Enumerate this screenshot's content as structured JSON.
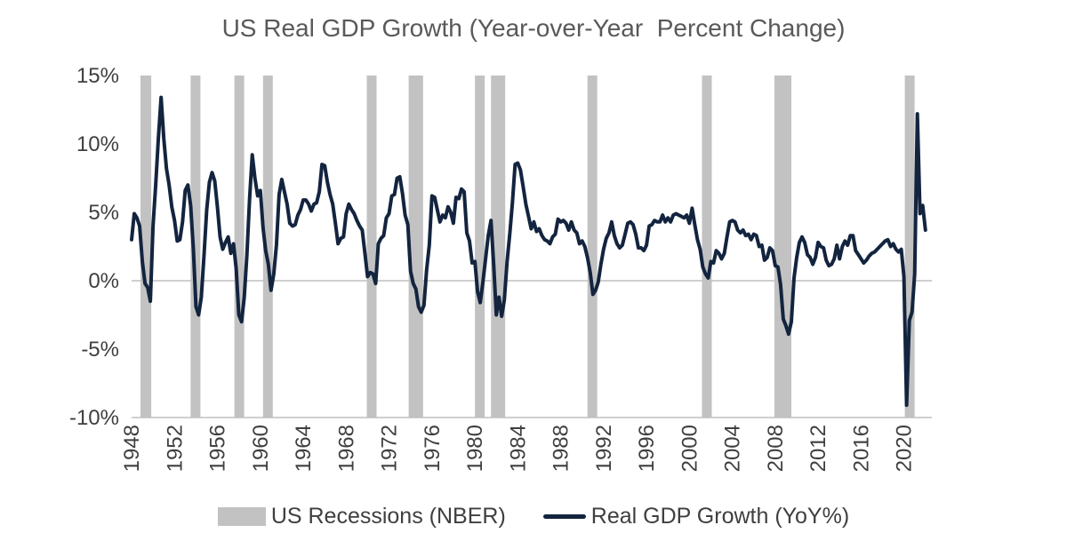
{
  "chart_data": {
    "type": "line",
    "title": "US Real GDP Growth (Year-over-Year  Percent Change)",
    "x_start_year": 1948,
    "frequency_per_year": 4,
    "xlim": [
      1948,
      2022.6
    ],
    "ylim": [
      -10,
      15
    ],
    "grid": "zero-line-and-bottom-axis-only",
    "legend_position": "bottom-center",
    "x_ticks": [
      1948,
      1952,
      1956,
      1960,
      1964,
      1968,
      1972,
      1976,
      1980,
      1984,
      1988,
      1992,
      1996,
      2000,
      2004,
      2008,
      2012,
      2016,
      2020
    ],
    "y_ticks": [
      {
        "value": 15,
        "label": "15%"
      },
      {
        "value": 10,
        "label": "10%"
      },
      {
        "value": 5,
        "label": "5%"
      },
      {
        "value": 0,
        "label": "0%"
      },
      {
        "value": -5,
        "label": "-5%"
      },
      {
        "value": -10,
        "label": "-10%"
      }
    ],
    "series": [
      {
        "name": "Real GDP Growth (YoY%)",
        "values": [
          3.0,
          4.9,
          4.6,
          4.0,
          1.4,
          -0.2,
          -0.5,
          -1.5,
          4.0,
          7.0,
          10.5,
          13.4,
          10.4,
          8.2,
          7.0,
          5.4,
          4.4,
          2.9,
          3.0,
          4.3,
          6.6,
          7.0,
          5.5,
          2.4,
          -1.9,
          -2.5,
          -1.2,
          1.8,
          5.2,
          7.2,
          7.9,
          7.3,
          5.4,
          3.2,
          2.3,
          2.8,
          3.2,
          2.0,
          2.7,
          0.9,
          -2.5,
          -3.0,
          -1.2,
          1.9,
          6.0,
          9.2,
          7.5,
          6.2,
          6.6,
          3.9,
          2.2,
          1.2,
          -0.7,
          0.5,
          2.6,
          6.3,
          7.4,
          6.5,
          5.6,
          4.2,
          4.0,
          4.1,
          4.8,
          5.2,
          5.9,
          5.9,
          5.6,
          5.1,
          5.6,
          5.7,
          6.5,
          8.5,
          8.4,
          7.2,
          6.3,
          5.6,
          4.2,
          2.7,
          3.1,
          3.2,
          4.9,
          5.6,
          5.2,
          4.9,
          4.4,
          4.0,
          3.7,
          2.0,
          0.3,
          0.6,
          0.5,
          -0.2,
          2.7,
          3.1,
          3.3,
          4.6,
          4.9,
          6.2,
          6.3,
          7.5,
          7.6,
          6.4,
          4.8,
          4.1,
          0.7,
          -0.2,
          -0.6,
          -1.9,
          -2.3,
          -1.8,
          0.8,
          2.6,
          6.2,
          6.1,
          5.2,
          4.3,
          4.8,
          4.6,
          5.4,
          5.0,
          4.2,
          6.1,
          6.0,
          6.7,
          6.5,
          3.5,
          2.9,
          1.3,
          1.4,
          -0.8,
          -1.6,
          -0.1,
          1.6,
          3.3,
          4.4,
          1.2,
          -2.5,
          -1.2,
          -2.6,
          -1.4,
          1.4,
          3.4,
          5.7,
          8.5,
          8.6,
          8.1,
          6.9,
          5.6,
          4.7,
          3.8,
          4.3,
          3.6,
          3.8,
          3.3,
          3.0,
          2.9,
          2.7,
          3.2,
          3.4,
          4.5,
          4.3,
          4.4,
          4.2,
          3.7,
          4.3,
          3.7,
          3.5,
          2.7,
          2.9,
          2.5,
          1.7,
          0.6,
          -1.0,
          -0.7,
          -0.1,
          1.2,
          2.3,
          3.1,
          3.5,
          4.3,
          3.3,
          2.7,
          2.4,
          2.6,
          3.4,
          4.2,
          4.3,
          4.1,
          3.4,
          2.4,
          2.4,
          2.2,
          2.6,
          4.0,
          4.1,
          4.4,
          4.3,
          4.3,
          4.8,
          4.3,
          4.6,
          4.3,
          4.8,
          4.9,
          4.8,
          4.7,
          4.6,
          4.8,
          4.2,
          5.3,
          4.1,
          3.0,
          2.3,
          1.0,
          0.5,
          0.2,
          1.4,
          1.3,
          2.2,
          2.0,
          1.6,
          2.0,
          3.2,
          4.3,
          4.4,
          4.3,
          3.7,
          3.5,
          3.7,
          3.3,
          3.4,
          3.0,
          3.4,
          3.3,
          2.5,
          2.6,
          1.5,
          1.7,
          2.4,
          2.2,
          1.1,
          1.0,
          -0.3,
          -2.8,
          -3.3,
          -3.9,
          -3.0,
          0.2,
          1.7,
          2.8,
          3.2,
          2.8,
          1.9,
          1.7,
          1.2,
          1.7,
          2.8,
          2.5,
          2.4,
          1.5,
          1.1,
          1.2,
          1.6,
          2.6,
          1.6,
          2.5,
          2.9,
          2.6,
          3.3,
          3.3,
          2.2,
          1.9,
          1.6,
          1.3,
          1.5,
          1.8,
          2.0,
          2.1,
          2.3,
          2.5,
          2.7,
          2.9,
          3.0,
          2.5,
          2.7,
          2.3,
          2.1,
          2.3,
          0.3,
          -9.1,
          -2.9,
          -2.3,
          0.5,
          12.2,
          4.9,
          5.5,
          3.7
        ]
      }
    ],
    "recession_bands": [
      [
        1948.83,
        1949.83
      ],
      [
        1953.5,
        1954.33
      ],
      [
        1957.58,
        1958.25
      ],
      [
        1960.25,
        1961.08
      ],
      [
        1969.92,
        1970.83
      ],
      [
        1973.83,
        1975.17
      ],
      [
        1980.0,
        1980.5
      ],
      [
        1981.5,
        1982.83
      ],
      [
        1990.5,
        1991.17
      ],
      [
        2001.17,
        2001.83
      ],
      [
        2007.92,
        2009.5
      ],
      [
        2020.08,
        2020.33
      ]
    ],
    "legend": [
      {
        "label": "US Recessions (NBER)",
        "type": "band"
      },
      {
        "label": "Real GDP Growth (YoY%)",
        "type": "line"
      }
    ],
    "colors": {
      "line": "#13243f",
      "recession": "#c2c2c2",
      "grid": "#bfbfbf",
      "text": "#3f3f3f",
      "title": "#595959"
    }
  }
}
